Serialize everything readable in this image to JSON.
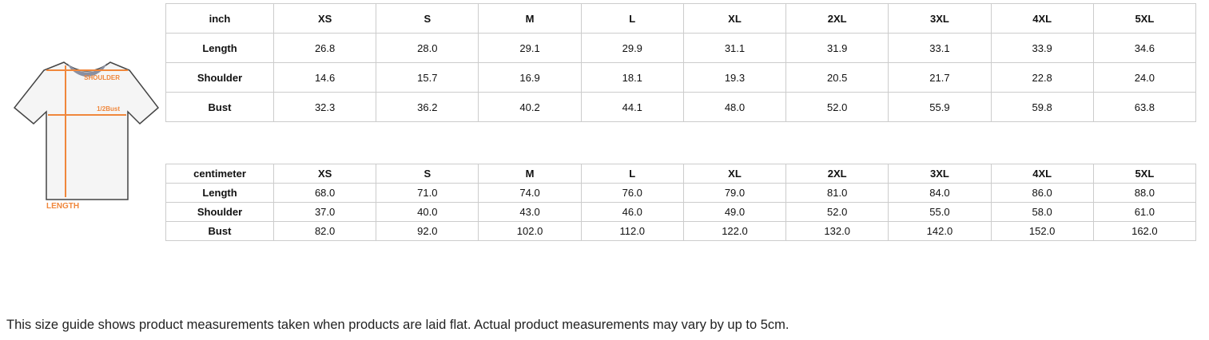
{
  "diagram": {
    "shoulder_label": "SHOULDER",
    "bust_label": "1/2Bust",
    "length_label": "LENGTH",
    "accent": "#f0873c"
  },
  "inch_table": {
    "header": [
      "inch",
      "XS",
      "S",
      "M",
      "L",
      "XL",
      "2XL",
      "3XL",
      "4XL",
      "5XL"
    ],
    "rows": [
      [
        "Length",
        "26.8",
        "28.0",
        "29.1",
        "29.9",
        "31.1",
        "31.9",
        "33.1",
        "33.9",
        "34.6"
      ],
      [
        "Shoulder",
        "14.6",
        "15.7",
        "16.9",
        "18.1",
        "19.3",
        "20.5",
        "21.7",
        "22.8",
        "24.0"
      ],
      [
        "Bust",
        "32.3",
        "36.2",
        "40.2",
        "44.1",
        "48.0",
        "52.0",
        "55.9",
        "59.8",
        "63.8"
      ]
    ]
  },
  "cm_table": {
    "header": [
      "centimeter",
      "XS",
      "S",
      "M",
      "L",
      "XL",
      "2XL",
      "3XL",
      "4XL",
      "5XL"
    ],
    "rows": [
      [
        "Length",
        "68.0",
        "71.0",
        "74.0",
        "76.0",
        "79.0",
        "81.0",
        "84.0",
        "86.0",
        "88.0"
      ],
      [
        "Shoulder",
        "37.0",
        "40.0",
        "43.0",
        "46.0",
        "49.0",
        "52.0",
        "55.0",
        "58.0",
        "61.0"
      ],
      [
        "Bust",
        "82.0",
        "92.0",
        "102.0",
        "112.0",
        "122.0",
        "132.0",
        "142.0",
        "152.0",
        "162.0"
      ]
    ]
  },
  "note": "This size guide shows product measurements taken when products are laid flat. Actual product measurements may vary by up to 5cm."
}
